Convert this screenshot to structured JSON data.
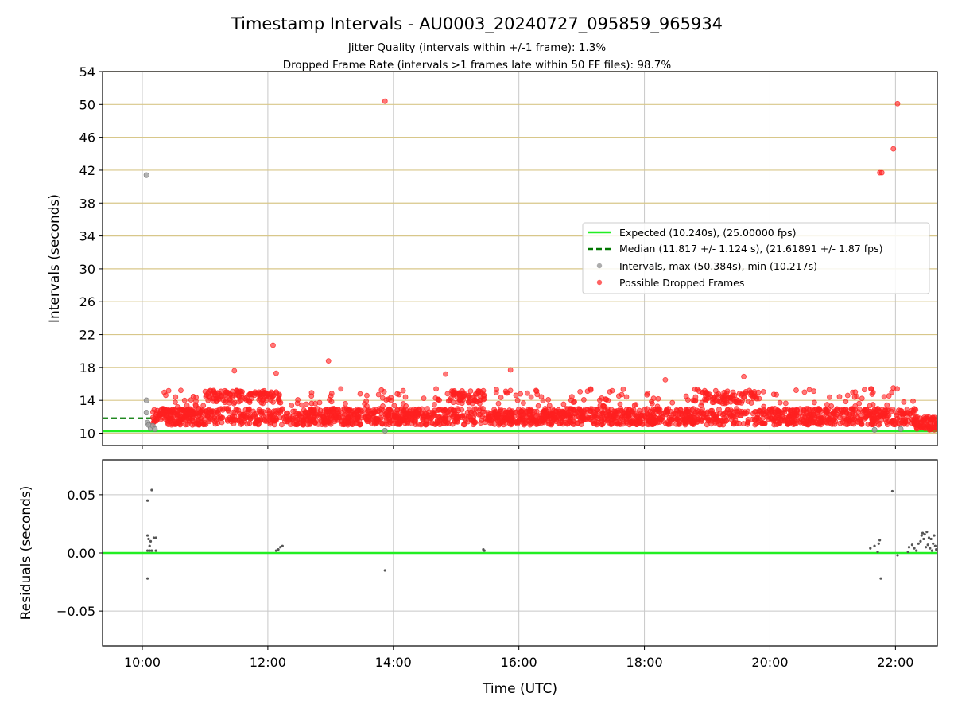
{
  "title": "Timestamp Intervals - AU0003_20240727_095859_965934",
  "subtitle_1": "Jitter Quality (intervals within +/-1 frame): 1.3%",
  "subtitle_2": "Dropped Frame Rate (intervals >1 frames late within 50 FF files): 98.7%",
  "colors": {
    "expected": "#22ee22",
    "median": "#007700",
    "intervals": "#999999",
    "dropped": "#ff2020",
    "residual": "#555555",
    "hgrid_top": "#d8c78a",
    "grid": "#c8c8c8"
  },
  "chart_data": [
    {
      "type": "scatter",
      "panel": "intervals",
      "ylabel": "Intervals (seconds)",
      "ylim": [
        8.5,
        54
      ],
      "yticks": [
        "10",
        "14",
        "18",
        "22",
        "26",
        "30",
        "34",
        "38",
        "42",
        "46",
        "50",
        "54"
      ],
      "xlim": [
        "09:22",
        "22:40"
      ],
      "grid": "both",
      "legend_position": "center-right",
      "legend": [
        "Expected (10.240s), (25.00000 fps)",
        "Median (11.817 +/- 1.124 s), (21.61891 +/- 1.87 fps)",
        "Intervals, max (50.384s), min (10.217s)",
        "Possible Dropped Frames"
      ],
      "expected_interval": 10.24,
      "median_interval": 11.817,
      "median_line_extent": [
        "09:22",
        "10:10"
      ],
      "interval_points": [
        {
          "t": "10:04",
          "y": 41.4
        },
        {
          "t": "10:04",
          "y": 14.0
        },
        {
          "t": "10:04",
          "y": 12.5
        },
        {
          "t": "10:05",
          "y": 11.3
        },
        {
          "t": "10:06",
          "y": 11.0
        },
        {
          "t": "10:08",
          "y": 10.6
        },
        {
          "t": "10:10",
          "y": 10.9
        },
        {
          "t": "10:12",
          "y": 10.5
        },
        {
          "t": "13:52",
          "y": 10.3
        },
        {
          "t": "21:40",
          "y": 10.4
        },
        {
          "t": "22:05",
          "y": 10.5
        }
      ],
      "dropped_points_sample": [
        {
          "t": "13:52",
          "y": 50.4
        },
        {
          "t": "22:02",
          "y": 50.1
        },
        {
          "t": "21:58",
          "y": 44.6
        },
        {
          "t": "21:45",
          "y": 41.7
        },
        {
          "t": "21:47",
          "y": 41.7
        },
        {
          "t": "12:05",
          "y": 20.7
        },
        {
          "t": "12:58",
          "y": 18.8
        },
        {
          "t": "11:28",
          "y": 17.6
        },
        {
          "t": "12:08",
          "y": 17.3
        },
        {
          "t": "14:50",
          "y": 17.2
        },
        {
          "t": "15:52",
          "y": 17.7
        },
        {
          "t": "18:20",
          "y": 16.5
        },
        {
          "t": "19:35",
          "y": 16.9
        },
        {
          "t": "21:58",
          "y": 15.5
        }
      ],
      "dropped_band": {
        "main_band": [
          11.0,
          13.0
        ],
        "upper_band": [
          13.6,
          15.2
        ],
        "upper_band_periods": [
          [
            "11:00",
            "12:15"
          ],
          [
            "14:50",
            "15:30"
          ],
          [
            "18:55",
            "19:50"
          ]
        ],
        "time_range": [
          "10:10",
          "22:40"
        ]
      }
    },
    {
      "type": "scatter",
      "panel": "residuals",
      "ylabel": "Residuals (seconds)",
      "xlabel": "Time (UTC)",
      "ylim": [
        -0.08,
        0.08
      ],
      "yticks": [
        "−0.05",
        "0.00",
        "0.05"
      ],
      "xticks": [
        "10:00",
        "12:00",
        "14:00",
        "16:00",
        "18:00",
        "20:00",
        "22:00"
      ],
      "zero_line": 0.0,
      "points": [
        {
          "t": "10:05",
          "y": 0.045
        },
        {
          "t": "10:09",
          "y": 0.054
        },
        {
          "t": "10:05",
          "y": 0.015
        },
        {
          "t": "10:06",
          "y": 0.012
        },
        {
          "t": "10:08",
          "y": 0.01
        },
        {
          "t": "10:07",
          "y": 0.006
        },
        {
          "t": "10:11",
          "y": 0.013
        },
        {
          "t": "10:13",
          "y": 0.013
        },
        {
          "t": "10:05",
          "y": 0.002
        },
        {
          "t": "10:07",
          "y": 0.002
        },
        {
          "t": "10:09",
          "y": 0.002
        },
        {
          "t": "10:13",
          "y": 0.002
        },
        {
          "t": "10:05",
          "y": -0.022
        },
        {
          "t": "12:08",
          "y": 0.002
        },
        {
          "t": "12:10",
          "y": 0.003
        },
        {
          "t": "12:12",
          "y": 0.005
        },
        {
          "t": "12:14",
          "y": 0.006
        },
        {
          "t": "13:52",
          "y": -0.015
        },
        {
          "t": "15:26",
          "y": 0.003
        },
        {
          "t": "15:27",
          "y": 0.002
        },
        {
          "t": "21:36",
          "y": 0.004
        },
        {
          "t": "21:40",
          "y": 0.006
        },
        {
          "t": "21:44",
          "y": 0.008
        },
        {
          "t": "21:45",
          "y": 0.011
        },
        {
          "t": "21:43",
          "y": 0.001
        },
        {
          "t": "21:46",
          "y": -0.022
        },
        {
          "t": "21:57",
          "y": 0.053
        },
        {
          "t": "22:02",
          "y": -0.002
        },
        {
          "t": "22:12",
          "y": 0.001
        },
        {
          "t": "22:13",
          "y": 0.005
        },
        {
          "t": "22:16",
          "y": 0.007
        },
        {
          "t": "22:18",
          "y": 0.004
        },
        {
          "t": "22:20",
          "y": 0.002
        },
        {
          "t": "22:22",
          "y": 0.008
        },
        {
          "t": "22:24",
          "y": 0.01
        },
        {
          "t": "22:25",
          "y": 0.015
        },
        {
          "t": "22:26",
          "y": 0.017
        },
        {
          "t": "22:27",
          "y": 0.012
        },
        {
          "t": "22:28",
          "y": 0.016
        },
        {
          "t": "22:29",
          "y": 0.005
        },
        {
          "t": "22:30",
          "y": 0.018
        },
        {
          "t": "22:31",
          "y": 0.007
        },
        {
          "t": "22:32",
          "y": 0.013
        },
        {
          "t": "22:33",
          "y": 0.004
        },
        {
          "t": "22:34",
          "y": 0.012
        },
        {
          "t": "22:35",
          "y": 0.002
        },
        {
          "t": "22:36",
          "y": 0.008
        },
        {
          "t": "22:37",
          "y": 0.015
        },
        {
          "t": "22:38",
          "y": 0.006
        },
        {
          "t": "22:39",
          "y": 0.003
        }
      ]
    }
  ]
}
